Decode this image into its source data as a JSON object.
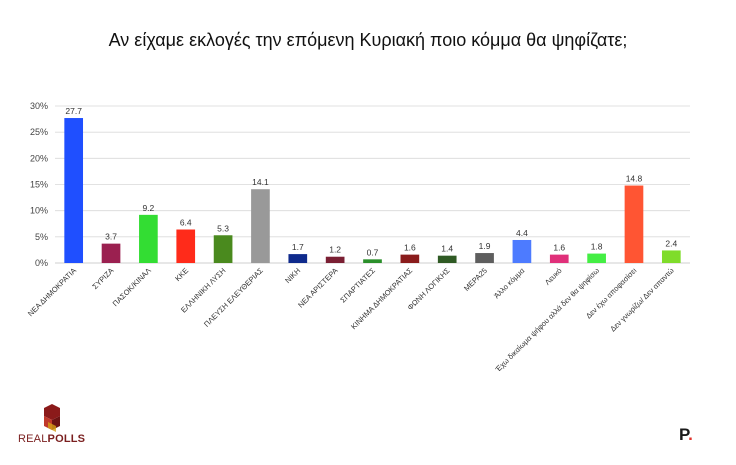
{
  "title": "Αν είχαμε εκλογές την επόμενη Κυριακή ποιο κόμμα θα ψηφίζατε;",
  "logos": {
    "left_real": "REAL",
    "left_polls": "POLLS",
    "right_letter": "P",
    "right_dot": "."
  },
  "chart_data": {
    "type": "bar",
    "title": "Αν είχαμε εκλογές την επόμενη Κυριακή ποιο κόμμα θα ψηφίζατε;",
    "xlabel": "",
    "ylabel": "",
    "ylim": [
      0,
      30
    ],
    "yticks": [
      "0%",
      "5%",
      "10%",
      "15%",
      "20%",
      "25%",
      "30%"
    ],
    "grid": true,
    "categories": [
      "ΝΕΑ ΔΗΜΟΚΡΑΤΙΑ",
      "ΣΥΡΙΖΑ",
      "ΠΑΣΟΚ/ΚΙΝΑΛ",
      "ΚΚΕ",
      "ΕΛΛΗΝΙΚΗ ΛΥΣΗ",
      "ΠΛΕΥΣΗ ΕΛΕΥΘΕΡΙΑΣ",
      "ΝΙΚΗ",
      "ΝΕΑ ΑΡΙΣΤΕΡΑ",
      "ΣΠΑΡΤΙΑΤΕΣ",
      "ΚΙΝΗΜΑ ΔΗΜΟΚΡΑΤΙΑΣ",
      "ΦΩΝΗ ΛΟΓΙΚΗΣ",
      "ΜΕΡΑ25",
      "Άλλο κόμμα",
      "Λευκό",
      "Έχω δικαίωμα ψήφου αλλά δεν θα ψηφίσω",
      "Δεν έχω αποφασίσει",
      "Δεν γνωρίζω/ Δεν απαντώ"
    ],
    "values": [
      27.7,
      3.7,
      9.2,
      6.4,
      5.3,
      14.1,
      1.7,
      1.2,
      0.7,
      1.6,
      1.4,
      1.9,
      4.4,
      1.6,
      1.8,
      14.8,
      2.4
    ],
    "labels": [
      "27.7",
      "3.7",
      "9.2",
      "6.4",
      "5.3",
      "14.1",
      "1.7",
      "1.2",
      "0.7",
      "1.6",
      "1.4",
      "1.9",
      "4.4",
      "1.6",
      "1.8",
      "14.8",
      "2.4"
    ],
    "colors": [
      "#1f4fff",
      "#9b2050",
      "#33dd33",
      "#ff2b1a",
      "#4a8a1e",
      "#999999",
      "#0f2a8c",
      "#7a1f33",
      "#2a8f2a",
      "#8a1c1c",
      "#2f5a24",
      "#5e5e5e",
      "#4d7bff",
      "#e0307a",
      "#44ee44",
      "#ff5533",
      "#7fdc2a"
    ]
  }
}
